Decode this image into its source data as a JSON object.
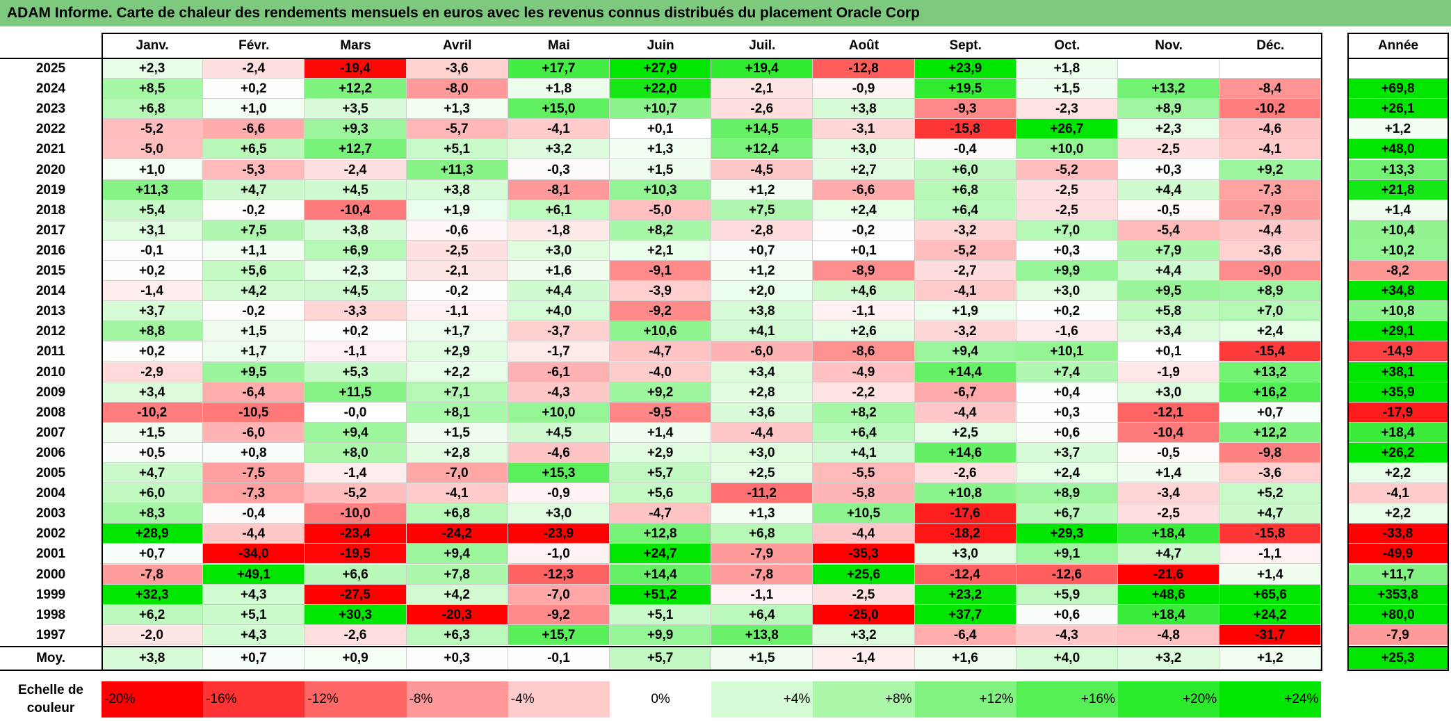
{
  "title": "ADAM Informe. Carte de chaleur des rendements mensuels en euros avec les revenus connus distribués du placement Oracle Corp",
  "chart_data": {
    "type": "heatmap",
    "title": "ADAM Informe. Carte de chaleur des rendements mensuels en euros avec les revenus connus distribués du placement Oracle Corp",
    "months": [
      "Janv.",
      "Févr.",
      "Mars",
      "Avril",
      "Mai",
      "Juin",
      "Juil.",
      "Août",
      "Sept.",
      "Oct.",
      "Nov.",
      "Déc."
    ],
    "year_header": "Année",
    "rows": [
      {
        "year": "2025",
        "months": [
          "+2,3",
          "-2,4",
          "-19,4",
          "-3,6",
          "+17,7",
          "+27,9",
          "+19,4",
          "-12,8",
          "+23,9",
          "+1,8",
          "",
          ""
        ],
        "annual": ""
      },
      {
        "year": "2024",
        "months": [
          "+8,5",
          "+0,2",
          "+12,2",
          "-8,0",
          "+1,8",
          "+22,0",
          "-2,1",
          "-0,9",
          "+19,5",
          "+1,5",
          "+13,2",
          "-8,4"
        ],
        "annual": "+69,8"
      },
      {
        "year": "2023",
        "months": [
          "+6,8",
          "+1,0",
          "+3,5",
          "+1,3",
          "+15,0",
          "+10,7",
          "-2,6",
          "+3,8",
          "-9,3",
          "-2,3",
          "+8,9",
          "-10,2"
        ],
        "annual": "+26,1"
      },
      {
        "year": "2022",
        "months": [
          "-5,2",
          "-6,6",
          "+9,3",
          "-5,7",
          "-4,1",
          "+0,1",
          "+14,5",
          "-3,1",
          "-15,8",
          "+26,7",
          "+2,3",
          "-4,6"
        ],
        "annual": "+1,2"
      },
      {
        "year": "2021",
        "months": [
          "-5,0",
          "+6,5",
          "+12,7",
          "+5,1",
          "+3,2",
          "+1,3",
          "+12,4",
          "+3,0",
          "-0,4",
          "+10,0",
          "-2,5",
          "-4,1"
        ],
        "annual": "+48,0"
      },
      {
        "year": "2020",
        "months": [
          "+1,0",
          "-5,3",
          "-2,4",
          "+11,3",
          "-0,3",
          "+1,5",
          "-4,5",
          "+2,7",
          "+6,0",
          "-5,2",
          "+0,3",
          "+9,2"
        ],
        "annual": "+13,3"
      },
      {
        "year": "2019",
        "months": [
          "+11,3",
          "+4,7",
          "+4,5",
          "+3,8",
          "-8,1",
          "+10,3",
          "+1,2",
          "-6,6",
          "+6,8",
          "-2,5",
          "+4,4",
          "-7,3"
        ],
        "annual": "+21,8"
      },
      {
        "year": "2018",
        "months": [
          "+5,4",
          "-0,2",
          "-10,4",
          "+1,9",
          "+6,1",
          "-5,0",
          "+7,5",
          "+2,4",
          "+6,4",
          "-2,5",
          "-0,5",
          "-7,9"
        ],
        "annual": "+1,4"
      },
      {
        "year": "2017",
        "months": [
          "+3,1",
          "+7,5",
          "+3,8",
          "-0,6",
          "-1,8",
          "+8,2",
          "-2,8",
          "-0,2",
          "-3,2",
          "+7,0",
          "-5,4",
          "-4,4"
        ],
        "annual": "+10,4"
      },
      {
        "year": "2016",
        "months": [
          "-0,1",
          "+1,1",
          "+6,9",
          "-2,5",
          "+3,0",
          "+2,1",
          "+0,7",
          "+0,1",
          "-5,2",
          "+0,3",
          "+7,9",
          "-3,6"
        ],
        "annual": "+10,2"
      },
      {
        "year": "2015",
        "months": [
          "+0,2",
          "+5,6",
          "+2,3",
          "-2,1",
          "+1,6",
          "-9,1",
          "+1,2",
          "-8,9",
          "-2,7",
          "+9,9",
          "+4,4",
          "-9,0"
        ],
        "annual": "-8,2"
      },
      {
        "year": "2014",
        "months": [
          "-1,4",
          "+4,2",
          "+4,5",
          "-0,2",
          "+4,4",
          "-3,9",
          "+2,0",
          "+4,6",
          "-4,1",
          "+3,0",
          "+9,5",
          "+8,9"
        ],
        "annual": "+34,8"
      },
      {
        "year": "2013",
        "months": [
          "+3,7",
          "-0,2",
          "-3,3",
          "-1,1",
          "+4,0",
          "-9,2",
          "+3,8",
          "-1,1",
          "+1,9",
          "+0,2",
          "+5,8",
          "+7,0"
        ],
        "annual": "+10,8"
      },
      {
        "year": "2012",
        "months": [
          "+8,8",
          "+1,5",
          "+0,2",
          "+1,7",
          "-3,7",
          "+10,6",
          "+4,1",
          "+2,6",
          "-3,2",
          "-1,6",
          "+3,4",
          "+2,4"
        ],
        "annual": "+29,1"
      },
      {
        "year": "2011",
        "months": [
          "+0,2",
          "+1,7",
          "-1,1",
          "+2,9",
          "-1,7",
          "-4,7",
          "-6,0",
          "-8,6",
          "+9,4",
          "+10,1",
          "+0,1",
          "-15,4"
        ],
        "annual": "-14,9"
      },
      {
        "year": "2010",
        "months": [
          "-2,9",
          "+9,5",
          "+5,3",
          "+2,2",
          "-6,1",
          "-4,0",
          "+3,4",
          "-4,9",
          "+14,4",
          "+7,4",
          "-1,9",
          "+13,2"
        ],
        "annual": "+38,1"
      },
      {
        "year": "2009",
        "months": [
          "+3,4",
          "-6,4",
          "+11,5",
          "+7,1",
          "-4,3",
          "+9,2",
          "+2,8",
          "-2,2",
          "-6,7",
          "+0,4",
          "+3,0",
          "+16,2"
        ],
        "annual": "+35,9"
      },
      {
        "year": "2008",
        "months": [
          "-10,2",
          "-10,5",
          "-0,0",
          "+8,1",
          "+10,0",
          "-9,5",
          "+3,6",
          "+8,2",
          "-4,4",
          "+0,3",
          "-12,1",
          "+0,7"
        ],
        "annual": "-17,9"
      },
      {
        "year": "2007",
        "months": [
          "+1,5",
          "-6,0",
          "+9,4",
          "+1,5",
          "+4,5",
          "+1,4",
          "-4,4",
          "+6,4",
          "+2,5",
          "+0,6",
          "-10,4",
          "+12,2"
        ],
        "annual": "+18,4"
      },
      {
        "year": "2006",
        "months": [
          "+0,5",
          "+0,8",
          "+8,0",
          "+2,8",
          "-4,6",
          "+2,9",
          "+3,0",
          "+4,1",
          "+14,6",
          "+3,7",
          "-0,5",
          "-9,8"
        ],
        "annual": "+26,2"
      },
      {
        "year": "2005",
        "months": [
          "+4,7",
          "-7,5",
          "-1,4",
          "-7,0",
          "+15,3",
          "+5,7",
          "+2,5",
          "-5,5",
          "-2,6",
          "+2,4",
          "+1,4",
          "-3,6"
        ],
        "annual": "+2,2"
      },
      {
        "year": "2004",
        "months": [
          "+6,0",
          "-7,3",
          "-5,2",
          "-4,1",
          "-0,9",
          "+5,6",
          "-11,2",
          "-5,8",
          "+10,8",
          "+8,9",
          "-3,4",
          "+5,2"
        ],
        "annual": "-4,1"
      },
      {
        "year": "2003",
        "months": [
          "+8,3",
          "-0,4",
          "-10,0",
          "+6,8",
          "+3,0",
          "-4,7",
          "+1,3",
          "+10,5",
          "-17,6",
          "+6,7",
          "-2,5",
          "+4,7"
        ],
        "annual": "+2,2"
      },
      {
        "year": "2002",
        "months": [
          "+28,9",
          "-4,4",
          "-23,4",
          "-24,2",
          "-23,9",
          "+12,8",
          "+6,8",
          "-4,4",
          "-18,2",
          "+29,3",
          "+18,4",
          "-15,8"
        ],
        "annual": "-33,8"
      },
      {
        "year": "2001",
        "months": [
          "+0,7",
          "-34,0",
          "-19,5",
          "+9,4",
          "-1,0",
          "+24,7",
          "-7,9",
          "-35,3",
          "+3,0",
          "+9,1",
          "+4,7",
          "-1,1"
        ],
        "annual": "-49,9"
      },
      {
        "year": "2000",
        "months": [
          "-7,8",
          "+49,1",
          "+6,6",
          "+7,8",
          "-12,3",
          "+14,4",
          "-7,8",
          "+25,6",
          "-12,4",
          "-12,6",
          "-21,6",
          "+1,4"
        ],
        "annual": "+11,7"
      },
      {
        "year": "1999",
        "months": [
          "+32,3",
          "+4,3",
          "-27,5",
          "+4,2",
          "-7,0",
          "+51,2",
          "-1,1",
          "-2,5",
          "+23,2",
          "+5,9",
          "+48,6",
          "+65,6"
        ],
        "annual": "+353,8"
      },
      {
        "year": "1998",
        "months": [
          "+6,2",
          "+5,1",
          "+30,3",
          "-20,3",
          "-9,2",
          "+5,1",
          "+6,4",
          "-25,0",
          "+37,7",
          "+0,6",
          "+18,4",
          "+24,2"
        ],
        "annual": "+80,0"
      },
      {
        "year": "1997",
        "months": [
          "-2,0",
          "+4,3",
          "-2,6",
          "+6,3",
          "+15,7",
          "+9,9",
          "+13,8",
          "+3,2",
          "-6,4",
          "-4,3",
          "-4,8",
          "-31,7"
        ],
        "annual": "-7,9"
      }
    ],
    "average": {
      "label": "Moy.",
      "months": [
        "+3,8",
        "+0,7",
        "+0,9",
        "+0,3",
        "-0,1",
        "+5,7",
        "+1,5",
        "-1,4",
        "+1,6",
        "+4,0",
        "+3,2",
        "+1,2"
      ],
      "annual": "+25,3"
    },
    "scale": {
      "label": "Echelle de couleur",
      "steps": [
        {
          "label": "-20%",
          "value": -20
        },
        {
          "label": "-16%",
          "value": -16
        },
        {
          "label": "-12%",
          "value": -12
        },
        {
          "label": "-8%",
          "value": -8
        },
        {
          "label": "-4%",
          "value": -4
        },
        {
          "label": "0%",
          "value": 0
        },
        {
          "label": "+4%",
          "value": 4
        },
        {
          "label": "+8%",
          "value": 8
        },
        {
          "label": "+12%",
          "value": 12
        },
        {
          "label": "+16%",
          "value": 16
        },
        {
          "label": "+20%",
          "value": 20
        },
        {
          "label": "+24%",
          "value": 24
        }
      ]
    }
  }
}
